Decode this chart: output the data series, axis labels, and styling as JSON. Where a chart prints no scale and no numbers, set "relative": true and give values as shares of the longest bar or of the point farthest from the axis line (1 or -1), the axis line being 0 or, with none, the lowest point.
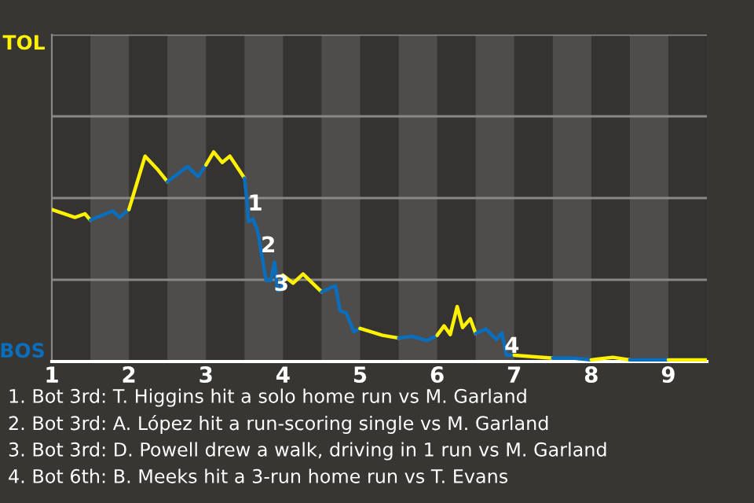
{
  "chart_data": {
    "type": "line",
    "relative": true,
    "series": [
      {
        "color": "#fff200",
        "x": [
          1,
          1.3,
          1.43,
          1.5
        ],
        "values": [
          0.725,
          0.688,
          0.705,
          0.675
        ]
      },
      {
        "color": "#0a6ebd",
        "x": [
          1.5,
          1.79,
          1.88,
          2
        ],
        "values": [
          0.675,
          0.718,
          0.688,
          0.725
        ]
      },
      {
        "color": "#fff200",
        "x": [
          2,
          2.21,
          2.38,
          2.5
        ],
        "values": [
          0.725,
          0.98,
          0.913,
          0.858
        ]
      },
      {
        "color": "#0a6ebd",
        "x": [
          2.5,
          2.76,
          2.9,
          3
        ],
        "values": [
          0.858,
          0.93,
          0.883,
          0.938
        ]
      },
      {
        "color": "#fff200",
        "x": [
          3,
          3.1,
          3.21,
          3.31,
          3.5
        ],
        "values": [
          0.938,
          1,
          0.95,
          0.98,
          0.875
        ]
      },
      {
        "color": "#0a6ebd",
        "x": [
          3.5,
          3.53,
          3.55,
          3.61,
          3.67,
          3.74,
          3.78,
          3.84,
          3.89,
          3.93,
          3.98,
          4
        ],
        "values": [
          0.875,
          0.775,
          0.668,
          0.68,
          0.624,
          0.474,
          0.387,
          0.387,
          0.474,
          0.337,
          0.349,
          0.412
        ]
      },
      {
        "color": "#fff200",
        "x": [
          4,
          4.13,
          4.26,
          4.5
        ],
        "values": [
          0.412,
          0.374,
          0.418,
          0.332
        ]
      },
      {
        "color": "#0a6ebd",
        "x": [
          4.5,
          4.68,
          4.74,
          4.82,
          4.92,
          5
        ],
        "values": [
          0.332,
          0.362,
          0.242,
          0.231,
          0.142,
          0.158
        ]
      },
      {
        "color": "#fff200",
        "x": [
          5,
          5.29,
          5.5
        ],
        "values": [
          0.158,
          0.125,
          0.112
        ]
      },
      {
        "color": "#0a6ebd",
        "x": [
          5.5,
          5.67,
          5.87,
          6
        ],
        "values": [
          0.112,
          0.12,
          0.1,
          0.125
        ]
      },
      {
        "color": "#fff200",
        "x": [
          6,
          6.09,
          6.17,
          6.26,
          6.33,
          6.43,
          6.5
        ],
        "values": [
          0.125,
          0.17,
          0.129,
          0.262,
          0.162,
          0.204,
          0.133
        ]
      },
      {
        "color": "#0a6ebd",
        "x": [
          6.5,
          6.63,
          6.77,
          6.84,
          6.9,
          7
        ],
        "values": [
          0.133,
          0.156,
          0.105,
          0.137,
          0.03,
          0.03
        ]
      },
      {
        "color": "#fff200",
        "x": [
          7,
          7.5
        ],
        "values": [
          0.03,
          0.016
        ]
      },
      {
        "color": "#0a6ebd",
        "x": [
          7.5,
          7.78,
          8
        ],
        "values": [
          0.016,
          0.016,
          0.008
        ]
      },
      {
        "color": "#fff200",
        "x": [
          8,
          8.28,
          8.5
        ],
        "values": [
          0.008,
          0.02,
          0.008
        ]
      },
      {
        "color": "#0a6ebd",
        "x": [
          8.5,
          9
        ],
        "values": [
          0.008,
          0.008
        ]
      },
      {
        "color": "#fff200",
        "x": [
          9,
          9.5
        ],
        "values": [
          0.008,
          0.008
        ]
      }
    ],
    "xlim": [
      1,
      9.5
    ],
    "xticks": [
      1,
      2,
      3,
      4,
      5,
      6,
      7,
      8,
      9
    ],
    "ref_lines": [
      {
        "axis": "y",
        "value": 0.39,
        "color": "#8a8886"
      },
      {
        "axis": "y",
        "value": 0.78,
        "color": "#8a8886"
      },
      {
        "axis": "y",
        "value": 1.17,
        "color": "#8a8886"
      },
      {
        "axis": "y",
        "value": 1.56,
        "color": "#8a8886"
      }
    ],
    "bands": [
      {
        "axis": "x",
        "from": 1.5,
        "to": 2,
        "color": "#4e4d4b"
      },
      {
        "axis": "x",
        "from": 2.5,
        "to": 3,
        "color": "#4e4d4b"
      },
      {
        "axis": "x",
        "from": 3.5,
        "to": 4,
        "color": "#4e4d4b"
      },
      {
        "axis": "x",
        "from": 4.5,
        "to": 5,
        "color": "#4e4d4b"
      },
      {
        "axis": "x",
        "from": 5.5,
        "to": 6,
        "color": "#4e4d4b"
      },
      {
        "axis": "x",
        "from": 6.5,
        "to": 7,
        "color": "#4e4d4b"
      },
      {
        "axis": "x",
        "from": 7.5,
        "to": 8,
        "color": "#4e4d4b"
      },
      {
        "axis": "x",
        "from": 8.5,
        "to": 9,
        "color": "#4e4d4b"
      }
    ],
    "annotations": [
      "TOL",
      "BOS",
      {
        "text": "1",
        "x": 3.64,
        "y": 0.75
      },
      {
        "text": "2",
        "x": 3.81,
        "y": 0.55
      },
      {
        "text": "3",
        "x": 3.98,
        "y": 0.367
      },
      {
        "text": "4",
        "x": 6.97,
        "y": 0.07
      },
      "1. Bot 3rd: T. Higgins hit a solo home run vs M. Garland",
      "2. Bot 3rd: A. López hit a run-scoring single vs M. Garland",
      "3. Bot 3rd: D. Powell drew a walk, driving in 1 run vs M. Garland",
      "4. Bot 6th: B. Meeks hit a 3-run home run vs T. Evans"
    ]
  }
}
